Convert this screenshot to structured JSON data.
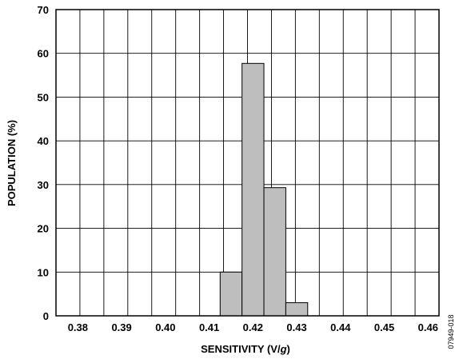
{
  "chart_data": {
    "type": "bar",
    "title": "",
    "xlabel": "SENSITIVITY (V/g)",
    "xlabel_prefix": "SENSITIVITY (V/",
    "xlabel_italic": "g",
    "xlabel_suffix": ")",
    "ylabel": "POPULATION (%)",
    "xlim": [
      0.375,
      0.4625
    ],
    "ylim": [
      0,
      70
    ],
    "x_ticks": [
      "0.38",
      "0.39",
      "0.40",
      "0.41",
      "0.42",
      "0.43",
      "0.44",
      "0.45",
      "0.46"
    ],
    "y_ticks": [
      "0",
      "10",
      "20",
      "30",
      "40",
      "50",
      "60",
      "70"
    ],
    "grid": true,
    "bar_color": "#bebebe",
    "bars": [
      {
        "x0": 0.4125,
        "x1": 0.4175,
        "value": 10
      },
      {
        "x0": 0.4175,
        "x1": 0.4225,
        "value": 57.7
      },
      {
        "x0": 0.4225,
        "x1": 0.4275,
        "value": 29.3
      },
      {
        "x0": 0.4275,
        "x1": 0.4325,
        "value": 3
      }
    ]
  },
  "figure_code": "07949-018"
}
